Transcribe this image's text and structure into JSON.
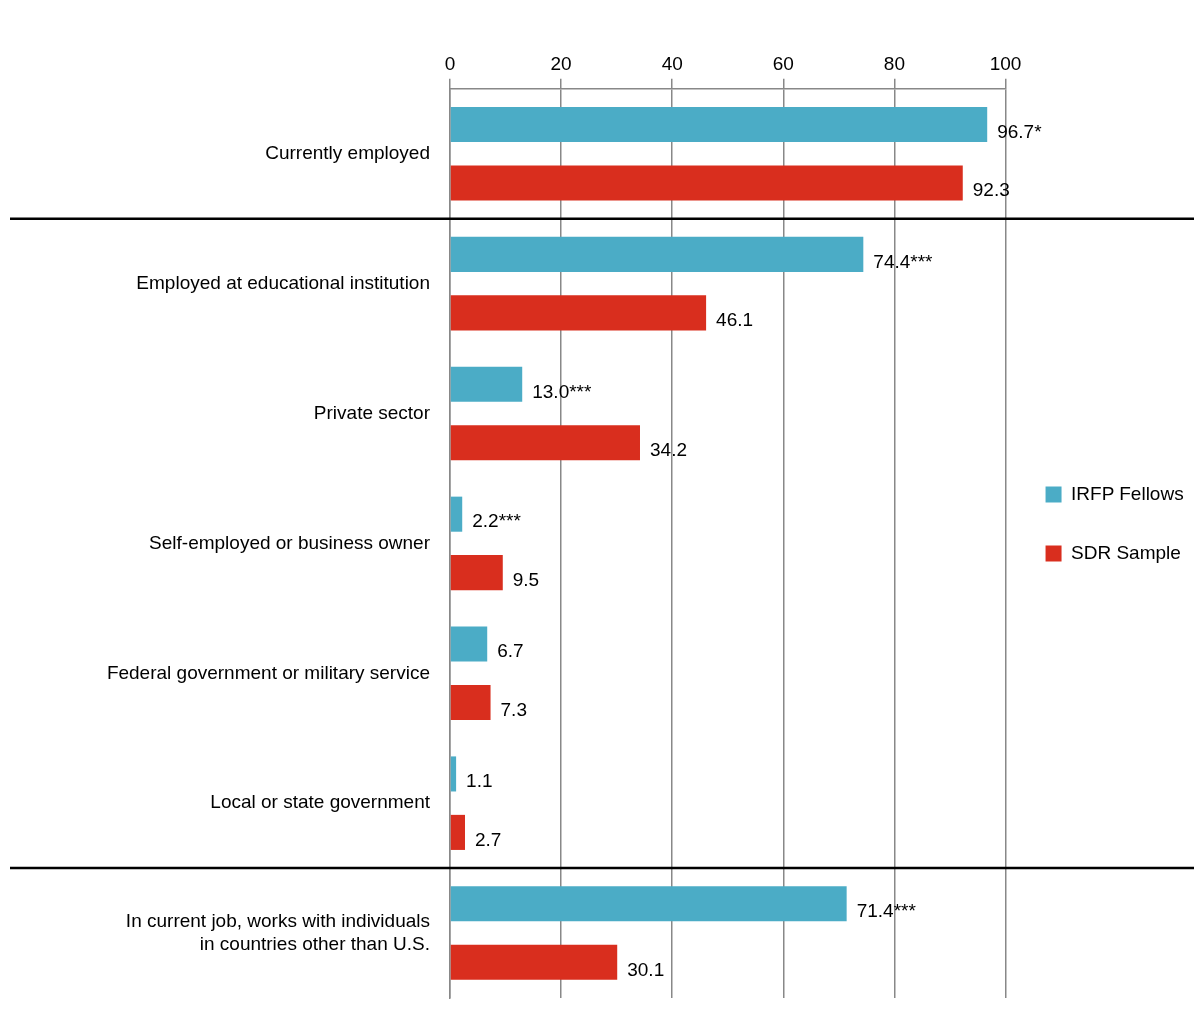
{
  "chart_data": {
    "type": "bar",
    "orientation": "horizontal",
    "categories": [
      "Currently employed",
      "Employed at educational institution",
      "Private sector",
      "Self-employed or business owner",
      "Federal government or military service",
      "Local or state government",
      "In current job, works with individuals in countries other than U.S."
    ],
    "series": [
      {
        "name": "IRFP Fellows",
        "color": "#4bacc6",
        "values": [
          96.7,
          74.4,
          13.0,
          2.2,
          6.7,
          1.1,
          71.4
        ],
        "value_labels": [
          "96.7*",
          "74.4***",
          "13.0***",
          "2.2***",
          "6.7",
          "1.1",
          "71.4***"
        ]
      },
      {
        "name": "SDR Sample",
        "color": "#d92e1e",
        "values": [
          92.3,
          46.1,
          34.2,
          9.5,
          7.3,
          2.7,
          30.1
        ],
        "value_labels": [
          "92.3",
          "46.1",
          "34.2",
          "9.5",
          "7.3",
          "2.7",
          "30.1"
        ]
      }
    ],
    "xlim": [
      0,
      100
    ],
    "xticks": [
      0,
      20,
      40,
      60,
      80,
      100
    ],
    "grid": "x",
    "legend": "right"
  }
}
